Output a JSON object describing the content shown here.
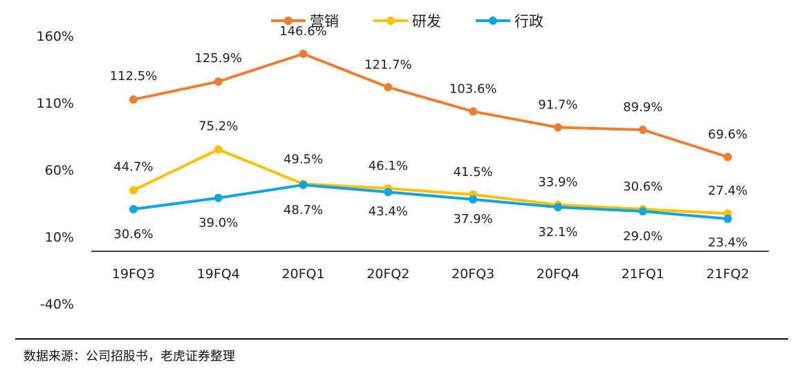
{
  "chart_data": {
    "type": "line",
    "categories": [
      "19FQ3",
      "19FQ4",
      "20FQ1",
      "20FQ2",
      "20FQ3",
      "20FQ4",
      "21FQ1",
      "21FQ2"
    ],
    "y_ticks": [
      "160%",
      "110%",
      "60%",
      "10%",
      "-40%"
    ],
    "y_tick_values": [
      160,
      110,
      60,
      10,
      -40
    ],
    "ylim": [
      -40,
      160
    ],
    "grid": false,
    "legend_position": "top-center",
    "series": [
      {
        "name": "营销",
        "color": "#ED7D31",
        "values": [
          112.5,
          125.9,
          146.6,
          121.7,
          103.6,
          91.7,
          89.9,
          69.6
        ],
        "labels": [
          "112.5%",
          "125.9%",
          "146.6%",
          "121.7%",
          "103.6%",
          "91.7%",
          "89.9%",
          "69.6%"
        ]
      },
      {
        "name": "研发",
        "color": "#FFC000",
        "values": [
          44.7,
          75.2,
          49.5,
          46.1,
          41.5,
          33.9,
          30.6,
          27.4
        ],
        "labels": [
          "44.7%",
          "75.2%",
          "49.5%",
          "46.1%",
          "41.5%",
          "33.9%",
          "30.6%",
          "27.4%"
        ]
      },
      {
        "name": "行政",
        "color": "#0FA5E0",
        "values": [
          30.6,
          39.0,
          48.7,
          43.4,
          37.9,
          32.1,
          29.0,
          23.4
        ],
        "labels": [
          "30.6%",
          "39.0%",
          "48.7%",
          "43.4%",
          "37.9%",
          "32.1%",
          "29.0%",
          "23.4%"
        ]
      }
    ]
  },
  "source": "数据来源：公司招股书，老虎证券整理"
}
